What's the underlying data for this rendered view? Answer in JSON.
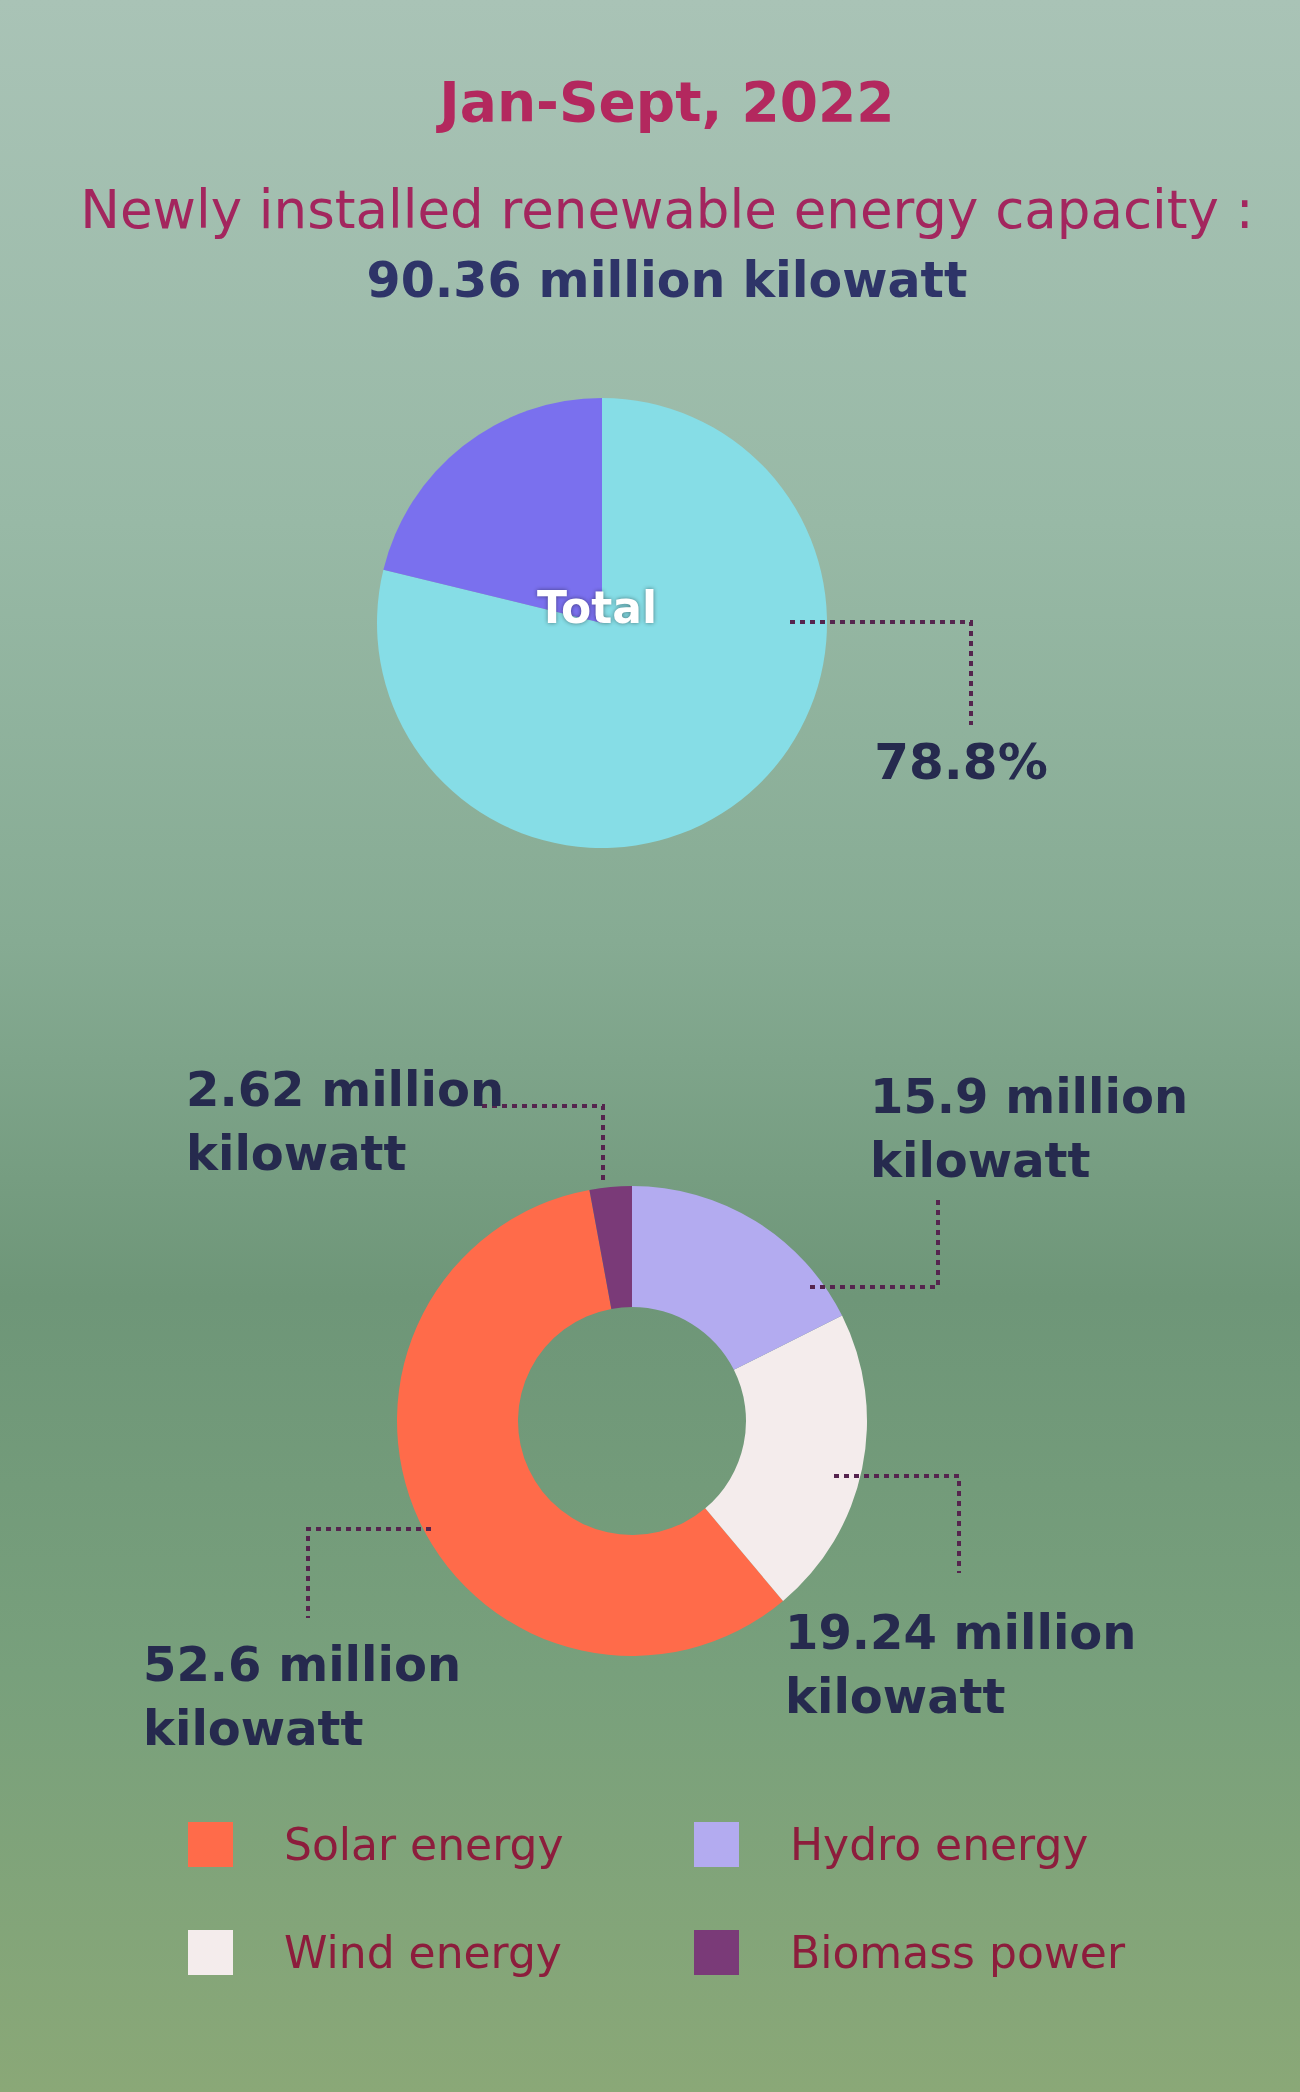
{
  "chart_data": [
    {
      "type": "pie",
      "title": "Jan-Sept, 2022",
      "subtitle": "Newly installed renewable energy capacity :",
      "annotations": [
        "90.36 million kilowatt",
        "Total"
      ],
      "categories": [
        null,
        null
      ],
      "values": [
        78.8,
        21.2
      ],
      "colors": [
        "#86dde6",
        "#7a70ee"
      ],
      "value_labels": [
        "78.8%",
        null
      ]
    },
    {
      "type": "donut",
      "categories": [
        "Solar energy",
        "Wind energy",
        "Hydro energy",
        "Biomass power"
      ],
      "values": [
        52.6,
        19.24,
        15.9,
        2.62
      ],
      "colors": [
        "#ff6b4a",
        "#f4ecec",
        "#b3abf0",
        "#7a3a78"
      ],
      "value_labels": [
        "52.6 million kilowatt",
        "19.24 million kilowatt",
        "15.9 million kilowatt",
        "2.62 million kilowatt"
      ],
      "legend": "bottom"
    }
  ]
}
